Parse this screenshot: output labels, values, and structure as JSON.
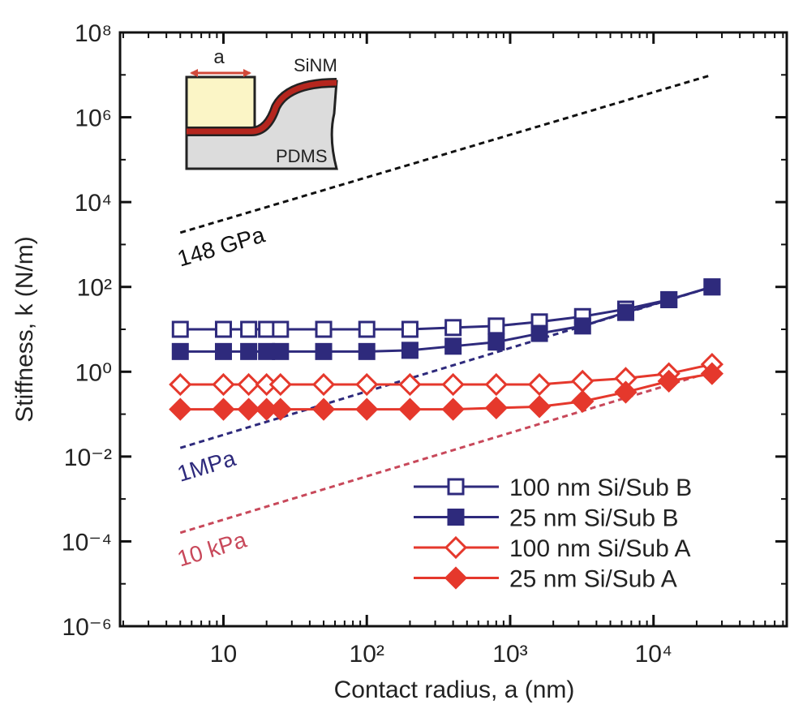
{
  "chart_data": {
    "type": "line",
    "x_label": "Contact radius, a (nm)",
    "y_label": "Stiffness, k (N/m)",
    "log_x": true,
    "log_y": true,
    "minor_ticks": true,
    "xlim": [
      1.9,
      85000
    ],
    "ylim": [
      1e-06,
      100000000.0
    ],
    "xticks": [
      10,
      {
        "value": 100,
        "label": "10²"
      },
      {
        "value": 1000,
        "label": "10³"
      },
      {
        "value": 10000,
        "label": "10⁴"
      }
    ],
    "yticks": [
      {
        "value": 1e-06,
        "label": "10⁻⁶"
      },
      {
        "value": 0.0001,
        "label": "10⁻⁴"
      },
      {
        "value": 0.01,
        "label": "10⁻²"
      },
      {
        "value": 1,
        "label": "10⁰"
      },
      {
        "value": 100,
        "label": "10²"
      },
      {
        "value": 10000,
        "label": "10⁴"
      },
      {
        "value": 1000000,
        "label": "10⁶"
      },
      {
        "value": 100000000,
        "label": "10⁸"
      }
    ],
    "x": [
      5,
      10,
      15,
      20,
      25,
      50,
      100,
      200,
      400,
      800,
      1600,
      3200,
      6400,
      12800,
      25600
    ],
    "series": [
      {
        "name": "100 nm Si/Sub B",
        "color": "#2e2a7c",
        "marker": "square-open",
        "values": [
          10,
          10,
          10,
          10,
          10,
          10,
          10,
          10,
          11,
          12,
          15,
          20,
          30,
          50,
          100
        ]
      },
      {
        "name": "25 nm Si/Sub B",
        "color": "#2e2a7c",
        "marker": "square-filled",
        "values": [
          3,
          3,
          3,
          3,
          3,
          3,
          3,
          3.2,
          4,
          5,
          8,
          12,
          25,
          50,
          100
        ]
      },
      {
        "name": "100 nm Si/Sub A",
        "color": "#e5382c",
        "marker": "diamond-open",
        "values": [
          0.5,
          0.5,
          0.5,
          0.5,
          0.5,
          0.5,
          0.5,
          0.5,
          0.5,
          0.5,
          0.5,
          0.6,
          0.7,
          0.9,
          1.5
        ]
      },
      {
        "name": "25 nm Si/Sub A",
        "color": "#e5382c",
        "marker": "diamond-filled",
        "values": [
          0.13,
          0.13,
          0.13,
          0.13,
          0.13,
          0.13,
          0.13,
          0.13,
          0.13,
          0.14,
          0.15,
          0.2,
          0.33,
          0.6,
          0.9
        ]
      }
    ],
    "reference_lines": [
      {
        "label": "148 GPa",
        "color": "#111111",
        "x": [
          5,
          25600
        ],
        "values": [
          1900,
          10000000
        ]
      },
      {
        "label": "1MPa",
        "color": "#2e2a7c",
        "x": [
          5,
          25600
        ],
        "values": [
          0.016,
          100
        ]
      },
      {
        "label": "10 kPa",
        "color": "#c8485a",
        "x": [
          5,
          25600
        ],
        "values": [
          0.00016,
          1
        ]
      }
    ],
    "legend": "lower right",
    "inset": {
      "dimension": "a",
      "film": "SiNM",
      "substrate": "PDMS"
    }
  }
}
